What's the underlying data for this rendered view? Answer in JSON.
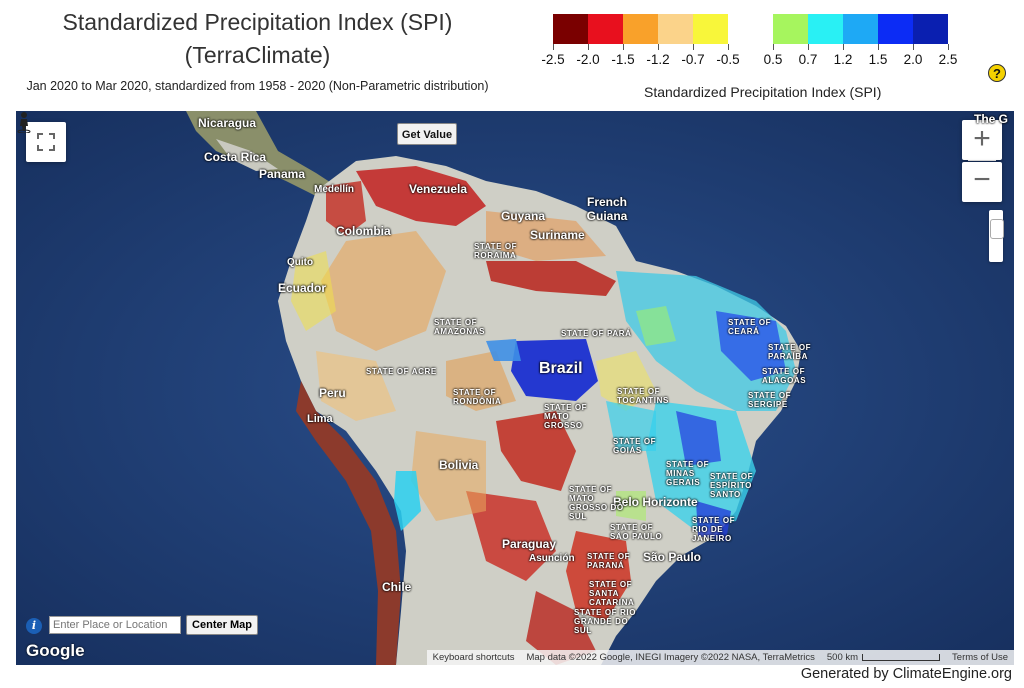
{
  "header": {
    "title": "Standardized Precipitation Index (SPI) (TerraClimate)",
    "subtitle": "Jan 2020 to Mar 2020, standardized from 1958 - 2020 (Non-Parametric distribution)"
  },
  "legend": {
    "title": "Standardized Precipitation Index (SPI)",
    "ticks": [
      "-2.5",
      "-2.0",
      "-1.5",
      "-1.2",
      "-0.7",
      "-0.5",
      "0.5",
      "0.7",
      "1.2",
      "1.5",
      "2.0",
      "2.5"
    ],
    "colors": [
      "#7a0000",
      "#e8101e",
      "#f9a12a",
      "#fbd38a",
      "#f8f63a",
      "#a6f55e",
      "#29f0f4",
      "#1ea9f5",
      "#0c2cf5",
      "#0a1fb0"
    ]
  },
  "map": {
    "get_value_label": "Get Value",
    "zoom_in_label": "+",
    "zoom_out_label": "−",
    "country_labels": [
      "Nicaragua",
      "Costa Rica",
      "Panama",
      "Medellín",
      "Colombia",
      "Venezuela",
      "Guyana",
      "Suriname",
      "French Guiana",
      "Quito",
      "Ecuador",
      "Peru",
      "Lima",
      "Bolivia",
      "Brazil",
      "Paraguay",
      "Asunción",
      "Chile",
      "Belo Horizonte",
      "São Paulo",
      "The G"
    ],
    "state_labels": [
      "STATE OF RORAIMA",
      "STATE OF AMAZONAS",
      "STATE OF ACRE",
      "STATE OF RONDÔNIA",
      "STATE OF MATO GROSSO",
      "STATE OF PARÁ",
      "STATE OF TOCANTINS",
      "STATE OF GOIÁS",
      "STATE OF MINAS GERAIS",
      "STATE OF MATO GROSSO DO SUL",
      "STATE OF SÃO PAULO",
      "STATE OF PARANÁ",
      "STATE OF SANTA CATARINA",
      "STATE OF RIO GRANDE DO SUL",
      "STATE OF CEARÁ",
      "STATE OF PARAÍBA",
      "STATE OF ALAGOAS",
      "STATE OF SERGIPE",
      "STATE OF ESPÍRITO SANTO",
      "STATE OF RIO DE JANEIRO"
    ],
    "search_placeholder": "Enter Place or Location",
    "center_map_label": "Center Map",
    "google_label": "Google",
    "attribution": {
      "shortcuts": "Keyboard shortcuts",
      "map_data": "Map data ©2022 Google, INEGI Imagery ©2022 NASA, TerraMetrics",
      "scale": "500 km",
      "terms": "Terms of Use"
    }
  },
  "footer": {
    "generated_by": "Generated by ClimateEngine.org"
  }
}
